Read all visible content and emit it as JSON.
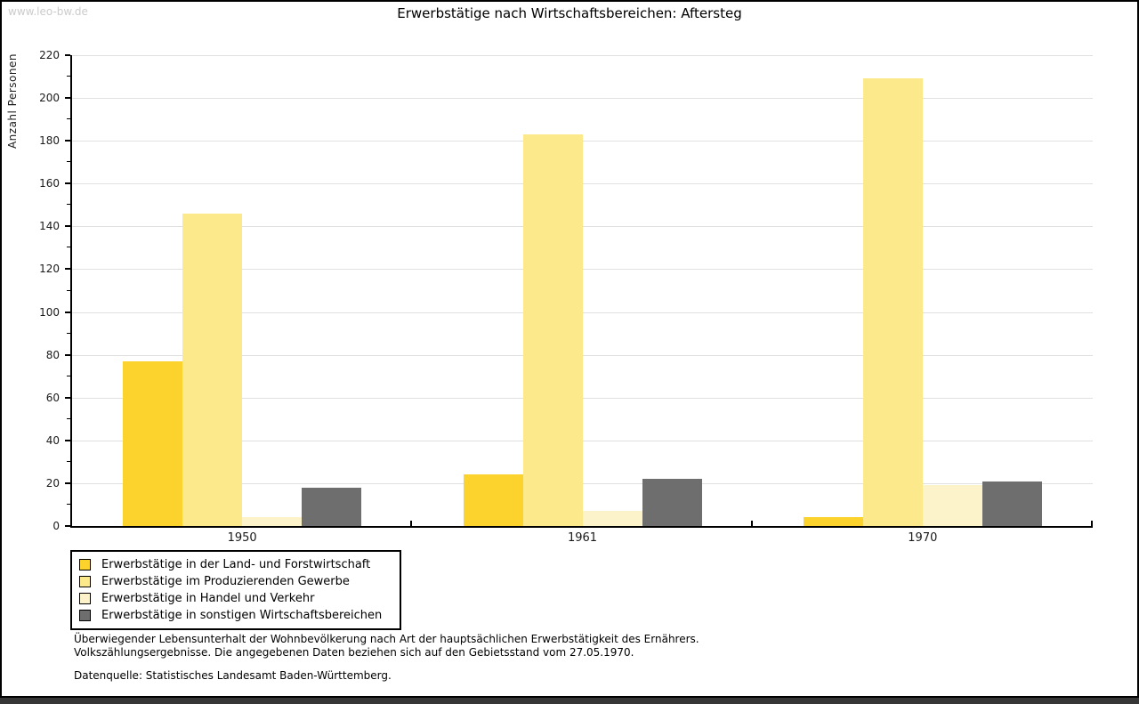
{
  "watermark": "www.leo-bw.de",
  "title": "Erwerbstätige nach Wirtschaftsbereichen: Aftersteg",
  "chart_data": {
    "type": "bar",
    "title": "Erwerbstätige nach Wirtschaftsbereichen: Aftersteg",
    "xlabel": "",
    "ylabel": "Anzahl Personen",
    "ylim": [
      0,
      220
    ],
    "ytick_step": 20,
    "ytick_minor_step": 10,
    "grid": true,
    "legend_position": "bottom-left",
    "categories": [
      "1950",
      "1961",
      "1970"
    ],
    "series": [
      {
        "name": "Erwerbstätige in der Land- und Forstwirtschaft",
        "color": "#fcd32c",
        "values": [
          77,
          24,
          4
        ]
      },
      {
        "name": "Erwerbstätige im Produzierenden Gewerbe",
        "color": "#fce98c",
        "values": [
          146,
          183,
          209
        ]
      },
      {
        "name": "Erwerbstätige in Handel und Verkehr",
        "color": "#fdf3cb",
        "values": [
          4,
          7,
          19
        ]
      },
      {
        "name": "Erwerbstätige in sonstigen Wirtschaftsbereichen",
        "color": "#6e6e6e",
        "values": [
          18,
          22,
          21
        ]
      }
    ]
  },
  "footer": {
    "note_line1": "Überwiegender Lebensunterhalt der Wohnbevölkerung nach Art der hauptsächlichen Erwerbstätigkeit des Ernährers.",
    "note_line2": "Volkszählungsergebnisse. Die angegebenen Daten beziehen sich auf den Gebietsstand vom 27.05.1970.",
    "source": "Datenquelle: Statistisches Landesamt Baden-Württemberg."
  },
  "style": {
    "gridline_color": "#e0e0e0",
    "axis_color": "#000000",
    "watermark_color": "#cbcbcb",
    "bottom_strip_color": "#363636"
  }
}
